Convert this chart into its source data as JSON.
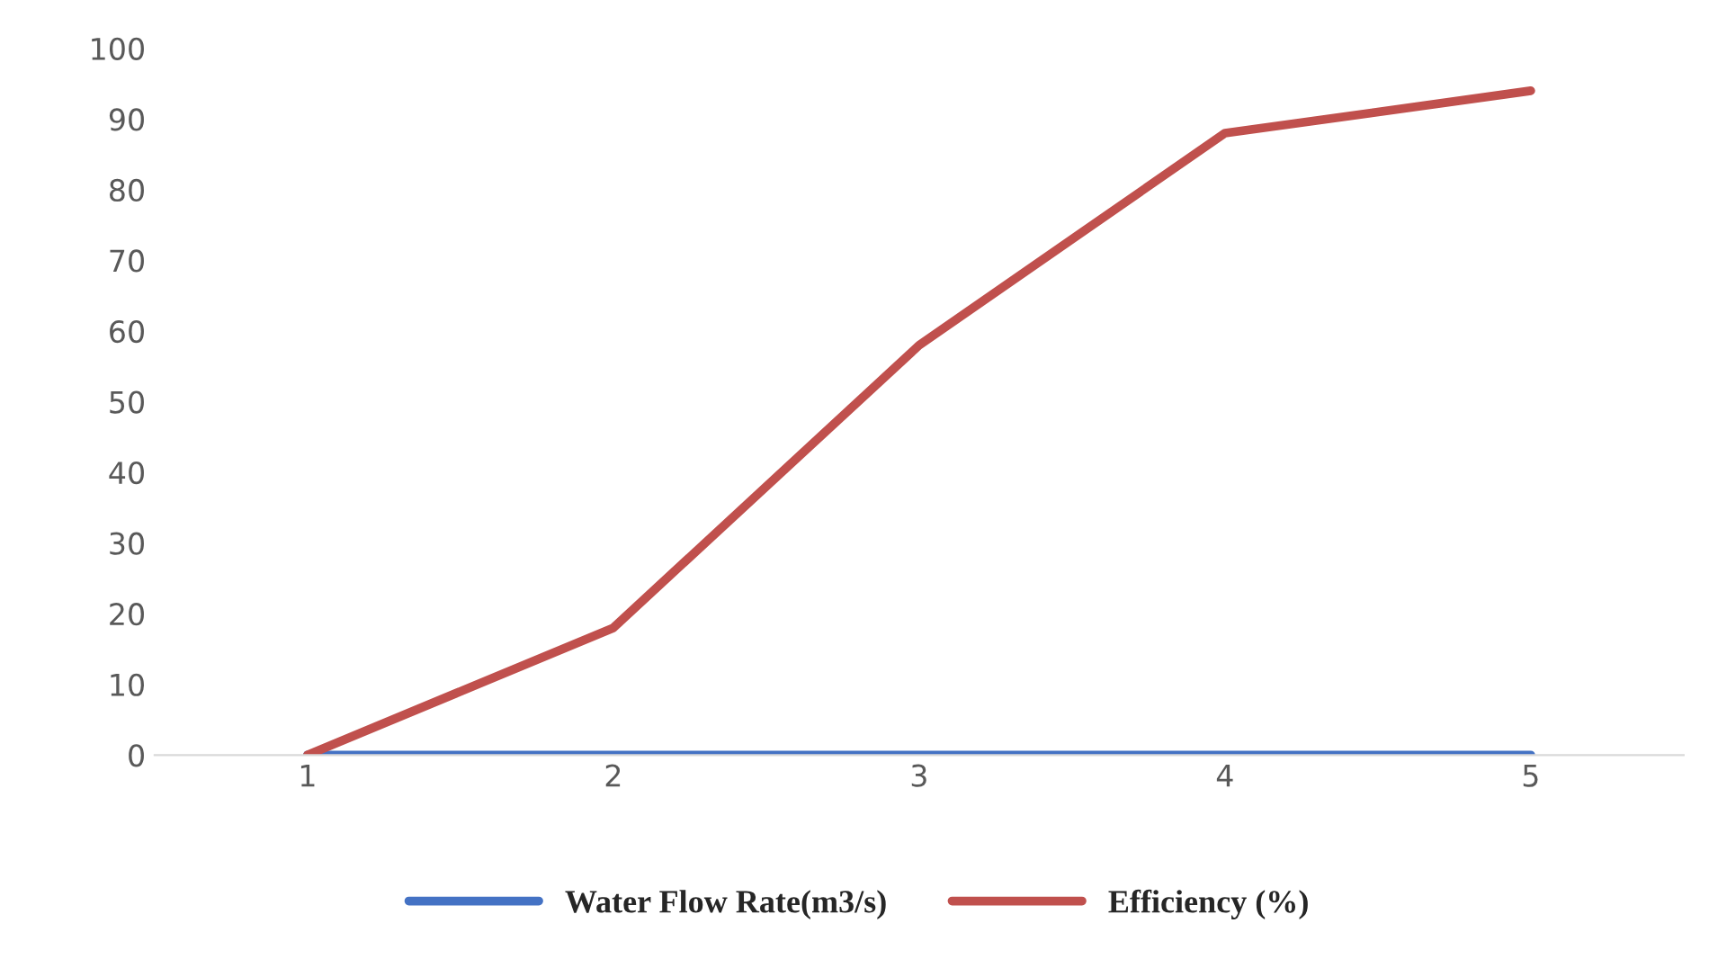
{
  "chart_data": {
    "type": "line",
    "categories": [
      "1",
      "2",
      "3",
      "4",
      "5"
    ],
    "series": [
      {
        "name": "Water Flow Rate(m3/s)",
        "color": "#4472c4",
        "values": [
          0,
          0,
          0,
          0,
          0
        ]
      },
      {
        "name": "Efficiency (%)",
        "color": "#c0504d",
        "values": [
          0,
          18,
          58,
          88,
          94
        ]
      }
    ],
    "ylim": [
      0,
      100
    ],
    "yticks": [
      0,
      10,
      20,
      30,
      40,
      50,
      60,
      70,
      80,
      90,
      100
    ],
    "grid": false,
    "legend": "bottom",
    "marker": "none",
    "line_style": "solid"
  }
}
